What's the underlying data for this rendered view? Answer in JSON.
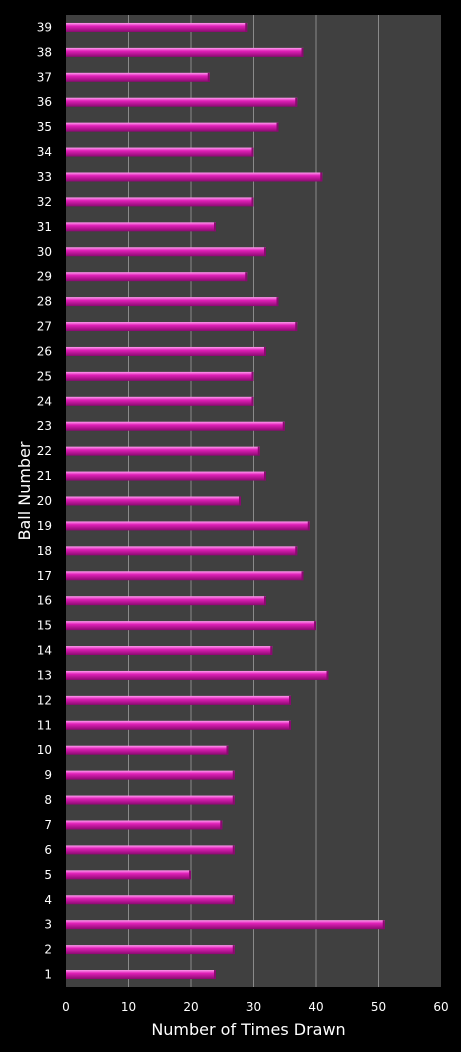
{
  "chart_data": {
    "type": "bar",
    "orientation": "horizontal",
    "title": "",
    "xlabel": "Number of Times Drawn",
    "ylabel": "Ball Number",
    "xlim": [
      0,
      60
    ],
    "x_ticks": [
      "0",
      "10",
      "20",
      "30",
      "40",
      "50",
      "60"
    ],
    "grid": "vertical",
    "categories": [
      "1",
      "2",
      "3",
      "4",
      "5",
      "6",
      "7",
      "8",
      "9",
      "10",
      "11",
      "12",
      "13",
      "14",
      "15",
      "16",
      "17",
      "18",
      "19",
      "20",
      "21",
      "22",
      "23",
      "24",
      "25",
      "26",
      "27",
      "28",
      "29",
      "30",
      "31",
      "32",
      "33",
      "34",
      "35",
      "36",
      "37",
      "38",
      "39"
    ],
    "values": [
      24,
      27,
      51,
      27,
      20,
      27,
      25,
      27,
      27,
      26,
      36,
      36,
      42,
      33,
      40,
      32,
      38,
      37,
      39,
      28,
      32,
      31,
      35,
      30,
      30,
      32,
      37,
      34,
      29,
      32,
      24,
      30,
      41,
      30,
      34,
      37,
      23,
      38,
      29
    ],
    "colors": {
      "bar": "#e020b8",
      "bar_highlight": "#ff9ff0",
      "bar_shadow": "#8a0a70",
      "plot_background": "#404040",
      "page_background": "#000000",
      "grid": "#8a8a8a",
      "text": "#ffffff"
    }
  }
}
